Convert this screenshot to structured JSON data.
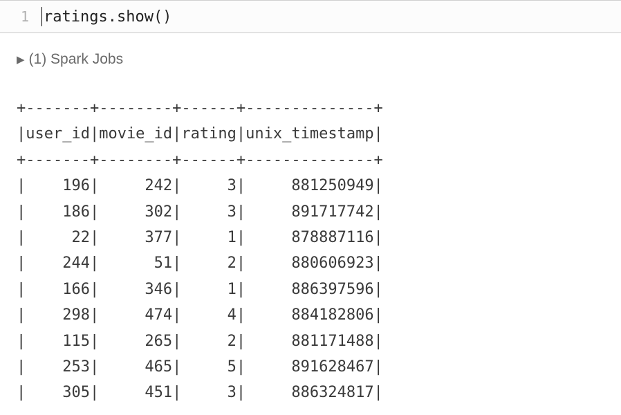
{
  "cell": {
    "line_number": "1",
    "code": "ratings.show()",
    "code_color": "#222222",
    "gutter_color": "#b0b0b0",
    "background": "#fcfcfc",
    "border_color": "#c8c8c8",
    "font_family_mono": "SFMono-Regular, Menlo, Consolas, monospace",
    "font_size_code": 22
  },
  "jobs": {
    "arrow": "▶",
    "label": "(1) Spark Jobs",
    "text_color": "#6a6a6a",
    "font_size": 21
  },
  "output_table": {
    "type": "ascii-table",
    "font_family": "SFMono-Regular, Menlo, Consolas, monospace",
    "font_size": 22,
    "line_height": 1.7,
    "text_color": "#3a3a3a",
    "columns": [
      {
        "name": "user_id",
        "width": 7,
        "align": "right"
      },
      {
        "name": "movie_id",
        "width": 8,
        "align": "right"
      },
      {
        "name": "rating",
        "width": 6,
        "align": "right"
      },
      {
        "name": "unix_timestamp",
        "width": 14,
        "align": "right"
      }
    ],
    "rows": [
      [
        "196",
        "242",
        "3",
        "881250949"
      ],
      [
        "186",
        "302",
        "3",
        "891717742"
      ],
      [
        "22",
        "377",
        "1",
        "878887116"
      ],
      [
        "244",
        "51",
        "2",
        "880606923"
      ],
      [
        "166",
        "346",
        "1",
        "886397596"
      ],
      [
        "298",
        "474",
        "4",
        "884182806"
      ],
      [
        "115",
        "265",
        "2",
        "881171488"
      ],
      [
        "253",
        "465",
        "5",
        "891628467"
      ],
      [
        "305",
        "451",
        "3",
        "886324817"
      ]
    ]
  },
  "colors": {
    "page_background": "#ffffff"
  }
}
